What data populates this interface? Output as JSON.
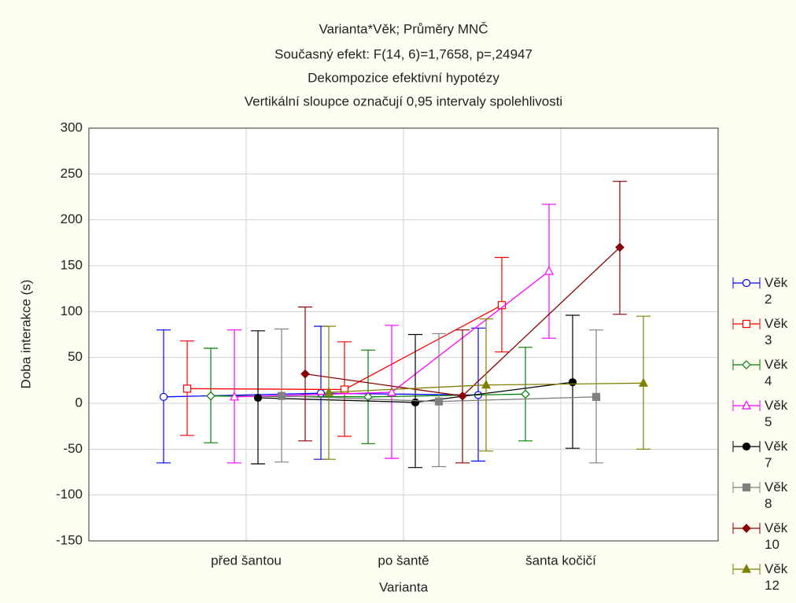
{
  "chart_data": {
    "type": "line",
    "title": "Varianta*Věk; Průměry MNČ",
    "subtitle": [
      "Současný efekt: F(14, 6)=1,7658, p=,24947",
      "Dekompozice efektivní hypotézy",
      "Vertikální sloupce označují 0,95 intervaly spolehlivosti"
    ],
    "x_label": "Varianta",
    "y_label": "Doba interakce (s)",
    "categories": [
      "před šantou",
      "po šantě",
      "šanta kočičí"
    ],
    "ylim": [
      -150,
      300
    ],
    "yticks": [
      -150,
      -100,
      -50,
      0,
      50,
      100,
      150,
      200,
      250,
      300
    ],
    "grid": true,
    "legend": "right",
    "series": [
      {
        "name": "Věk 2",
        "color": "#0000ff",
        "marker": "circle-open",
        "values": [
          7,
          11,
          9
        ],
        "lower": [
          -65,
          -61,
          -63
        ],
        "upper": [
          80,
          84,
          82
        ]
      },
      {
        "name": "Věk 3",
        "color": "#ff0000",
        "marker": "square-open",
        "values": [
          16,
          15,
          107
        ],
        "lower": [
          -35,
          -36,
          56
        ],
        "upper": [
          68,
          67,
          159
        ]
      },
      {
        "name": "Věk 4",
        "color": "#008000",
        "marker": "diamond-open",
        "values": [
          8,
          7,
          10
        ],
        "lower": [
          -43,
          -44,
          -41
        ],
        "upper": [
          60,
          58,
          61
        ]
      },
      {
        "name": "Věk 5",
        "color": "#ff00ff",
        "marker": "triangle-open",
        "values": [
          7,
          12,
          144
        ],
        "lower": [
          -65,
          -60,
          71
        ],
        "upper": [
          80,
          85,
          217
        ]
      },
      {
        "name": "Věk 7",
        "color": "#000000",
        "marker": "circle",
        "values": [
          6,
          1,
          23
        ],
        "lower": [
          -66,
          -70,
          -49
        ],
        "upper": [
          79,
          75,
          96
        ]
      },
      {
        "name": "Věk 8",
        "color": "#808080",
        "marker": "square",
        "values": [
          8,
          2,
          7
        ],
        "lower": [
          -64,
          -69,
          -65
        ],
        "upper": [
          81,
          76,
          80
        ]
      },
      {
        "name": "Věk 10",
        "color": "#8b0000",
        "marker": "diamond",
        "values": [
          32,
          8,
          170
        ],
        "lower": [
          -41,
          -65,
          97
        ],
        "upper": [
          105,
          80,
          242
        ]
      },
      {
        "name": "Věk 12",
        "color": "#808000",
        "marker": "triangle",
        "values": [
          12,
          20,
          22
        ],
        "lower": [
          -61,
          -52,
          -50
        ],
        "upper": [
          84,
          92,
          95
        ]
      }
    ]
  }
}
